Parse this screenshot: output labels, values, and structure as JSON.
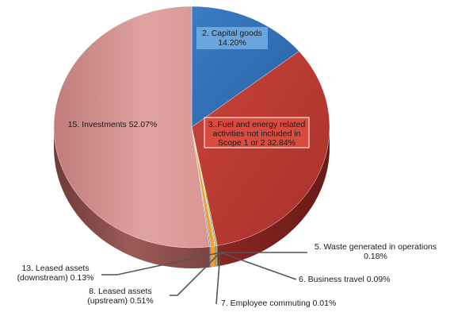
{
  "chart_data": {
    "type": "pie",
    "style": "3d",
    "title": "",
    "slices": [
      {
        "label": "2. Capital goods",
        "value": 14.2,
        "value_label": "14.20%",
        "color": "#2f6fb5"
      },
      {
        "label": "3..Fuel and energy related activities not included in Scope 1 or 2",
        "value": 32.84,
        "value_label": "32.84%",
        "color": "#c0392f"
      },
      {
        "label": "5. Waste generated in operations",
        "value": 0.18,
        "value_label": "0.18%",
        "color": "#8fbf4a"
      },
      {
        "label": "6. Business travel",
        "value": 0.09,
        "value_label": "0.09%",
        "color": "#7e5aa6"
      },
      {
        "label": "7. Employee commuting",
        "value": 0.01,
        "value_label": "0.01%",
        "color": "#3fa7c4"
      },
      {
        "label": "8. Leased assets (upstream)",
        "value": 0.51,
        "value_label": "0.51%",
        "color": "#f0a030"
      },
      {
        "label": "13. Leased assets (downstream)",
        "value": 0.13,
        "value_label": "0.13%",
        "color": "#4a7fc0"
      },
      {
        "label": "15. Investments",
        "value": 52.07,
        "value_label": "52.07%",
        "color": "#d99694"
      }
    ],
    "label_text": {
      "capital_goods": [
        "2. Capital goods",
        "14.20%"
      ],
      "fuel_energy": [
        "3..Fuel and energy related",
        "activities not included in",
        "Scope 1 or 2  32.84%"
      ],
      "investments": [
        "15. Investments 52.07%"
      ],
      "waste": [
        "5. Waste generated in operations",
        "0.18%"
      ],
      "business_travel": [
        "6. Business travel 0.09%"
      ],
      "employee_commuting": [
        "7. Employee commuting 0.01%"
      ],
      "leased_upstream": [
        "8. Leased assets",
        "(upstream) 0.51%"
      ],
      "leased_downstream": [
        "13. Leased assets",
        "(downstream) 0.13%"
      ]
    },
    "legend": "none"
  }
}
